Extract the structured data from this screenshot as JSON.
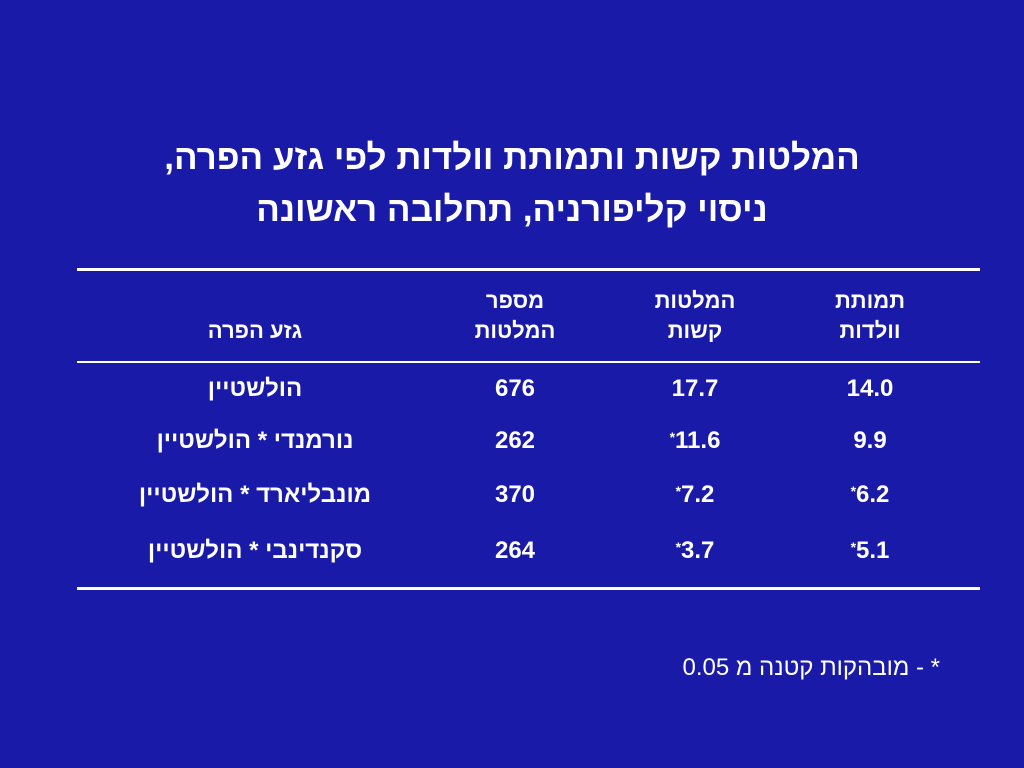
{
  "title": {
    "line1": "המלטות קשות ותמותת וולדות לפי גזע הפרה,",
    "line2": "ניסוי קליפורניה, תחלובה ראשונה"
  },
  "table": {
    "headers": {
      "breed": "גזע הפרה",
      "count_line1": "מספר",
      "count_line2": "המלטות",
      "hard_line1": "המלטות",
      "hard_line2": "קשות",
      "mort_line1": "תמותת",
      "mort_line2": "וולדות"
    },
    "rows": [
      {
        "breed": "הולשטיין",
        "count": "676",
        "hard": "17.7",
        "hard_mark": "",
        "mort": "14.0",
        "mort_mark": ""
      },
      {
        "breed": "נורמנדי * הולשטיין",
        "count": "262",
        "hard": "11.6",
        "hard_mark": "*",
        "mort": "9.9",
        "mort_mark": ""
      },
      {
        "breed": "מונבליארד * הולשטיין",
        "count": "370",
        "hard": "7.2",
        "hard_mark": "*",
        "mort": "6.2",
        "mort_mark": "*"
      },
      {
        "breed": "סקנדינבי * הולשטיין",
        "count": "264",
        "hard": "3.7",
        "hard_mark": "*",
        "mort": "5.1",
        "mort_mark": "*"
      }
    ]
  },
  "footnote": "* - מובהקות קטנה מ 0.05",
  "colors": {
    "background": "#1a1aa8",
    "text": "#ffffff"
  }
}
